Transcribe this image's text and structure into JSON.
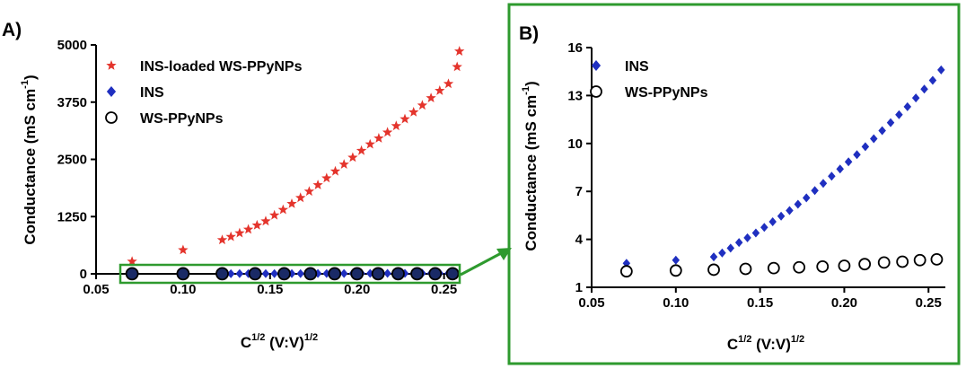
{
  "figure": {
    "panel_a_label": "A)",
    "panel_b_label": "B)",
    "colors": {
      "ins_loaded": "#e4342c",
      "ins": "#1f2fc0",
      "ws_a_fill": "#1a2a66",
      "ws_b_fill": "#ffffff",
      "highlight_box": "#2e9a2e",
      "axes": "#000000"
    }
  },
  "chart_data": [
    {
      "panel": "A",
      "type": "scatter",
      "x_label_base": "C",
      "x_label_sup": "1/2",
      "x_label_mid": " (V:V)",
      "x_label_sup2": "1/2",
      "y_label_base": "Conductance (mS cm",
      "y_label_sup": "-1",
      "y_label_end": ")",
      "xlim": [
        0.05,
        0.26
      ],
      "ylim": [
        0,
        5000
      ],
      "x_ticks": [
        0.05,
        0.1,
        0.15,
        0.2,
        0.25
      ],
      "x_tick_labels": [
        "0.05",
        "0.10",
        "0.15",
        "0.20",
        "0.25"
      ],
      "y_ticks": [
        0,
        1250,
        2500,
        3750,
        5000
      ],
      "y_tick_labels": [
        "0",
        "1250",
        "2500",
        "3750",
        "5000"
      ],
      "legend_position": "top-left",
      "series": [
        {
          "name": "INS-loaded WS-PPyNPs",
          "marker": "star",
          "x": [
            0.0707,
            0.1,
            0.1225,
            0.1275,
            0.1325,
            0.1375,
            0.1425,
            0.1475,
            0.1525,
            0.1575,
            0.1625,
            0.1675,
            0.1725,
            0.1775,
            0.1825,
            0.1875,
            0.1925,
            0.1975,
            0.2025,
            0.2075,
            0.2125,
            0.2175,
            0.2225,
            0.2275,
            0.2325,
            0.2375,
            0.2425,
            0.2475,
            0.2525,
            0.2575,
            0.2588
          ],
          "y": [
            270,
            520,
            740,
            810,
            890,
            970,
            1060,
            1150,
            1280,
            1400,
            1530,
            1660,
            1800,
            1940,
            2090,
            2240,
            2390,
            2540,
            2690,
            2830,
            2960,
            3090,
            3230,
            3380,
            3530,
            3680,
            3840,
            4000,
            4150,
            4520,
            4860
          ]
        },
        {
          "name": "INS",
          "marker": "diamond",
          "x": [
            0.0707,
            0.1,
            0.1225,
            0.1275,
            0.1325,
            0.1375,
            0.1425,
            0.1475,
            0.1525,
            0.1575,
            0.1625,
            0.1675,
            0.1725,
            0.1775,
            0.1825,
            0.1875,
            0.1925,
            0.1975,
            0.2025,
            0.2075,
            0.2125,
            0.2175,
            0.2225,
            0.2275,
            0.2325,
            0.2375,
            0.2425,
            0.2475,
            0.2525,
            0.2575
          ],
          "y": [
            3,
            3,
            3,
            3,
            4,
            4,
            4,
            5,
            5,
            5,
            6,
            6,
            6,
            7,
            7,
            7,
            8,
            8,
            9,
            9,
            10,
            10,
            11,
            11,
            12,
            12,
            13,
            13,
            14,
            15
          ]
        },
        {
          "name": "WS-PPyNPs",
          "marker": "circle",
          "x": [
            0.0707,
            0.1,
            0.1225,
            0.1414,
            0.1581,
            0.1732,
            0.1871,
            0.2,
            0.2121,
            0.2236,
            0.2345,
            0.2449,
            0.2549
          ],
          "y": [
            2,
            2,
            2,
            2,
            2,
            2,
            2,
            2,
            3,
            3,
            3,
            3,
            3
          ]
        }
      ]
    },
    {
      "panel": "B",
      "type": "scatter",
      "x_label_base": "C",
      "x_label_sup": "1/2",
      "x_label_mid": " (V:V)",
      "x_label_sup2": "1/2",
      "y_label_base": "Conductance (mS cm",
      "y_label_sup": "-1",
      "y_label_end": ")",
      "xlim": [
        0.05,
        0.26
      ],
      "ylim": [
        1,
        16
      ],
      "x_ticks": [
        0.05,
        0.1,
        0.15,
        0.2,
        0.25
      ],
      "x_tick_labels": [
        "0.05",
        "0.10",
        "0.15",
        "0.20",
        "0.25"
      ],
      "y_ticks": [
        1,
        4,
        7,
        10,
        13,
        16
      ],
      "y_tick_labels": [
        "1",
        "4",
        "7",
        "10",
        "13",
        "16"
      ],
      "legend_position": "top-left",
      "series": [
        {
          "name": "INS",
          "marker": "diamond",
          "x": [
            0.0707,
            0.1,
            0.1225,
            0.1275,
            0.1325,
            0.1375,
            0.1425,
            0.1475,
            0.1525,
            0.1575,
            0.1625,
            0.1675,
            0.1725,
            0.1775,
            0.1825,
            0.1875,
            0.1925,
            0.1975,
            0.2025,
            0.2075,
            0.2125,
            0.2175,
            0.2225,
            0.2275,
            0.2325,
            0.2375,
            0.2425,
            0.2475,
            0.2525,
            0.2575
          ],
          "y": [
            2.5,
            2.7,
            2.9,
            3.15,
            3.45,
            3.8,
            4.1,
            4.4,
            4.75,
            5.1,
            5.45,
            5.8,
            6.2,
            6.6,
            7.05,
            7.5,
            7.95,
            8.4,
            8.85,
            9.3,
            9.8,
            10.3,
            10.8,
            11.3,
            11.8,
            12.3,
            12.85,
            13.4,
            13.95,
            14.6
          ]
        },
        {
          "name": "WS-PPyNPs",
          "marker": "circle",
          "x": [
            0.0707,
            0.1,
            0.1225,
            0.1414,
            0.1581,
            0.1732,
            0.1871,
            0.2,
            0.2121,
            0.2236,
            0.2345,
            0.2449,
            0.2549
          ],
          "y": [
            2.0,
            2.05,
            2.1,
            2.15,
            2.2,
            2.25,
            2.3,
            2.35,
            2.45,
            2.55,
            2.6,
            2.7,
            2.75
          ]
        }
      ]
    }
  ]
}
